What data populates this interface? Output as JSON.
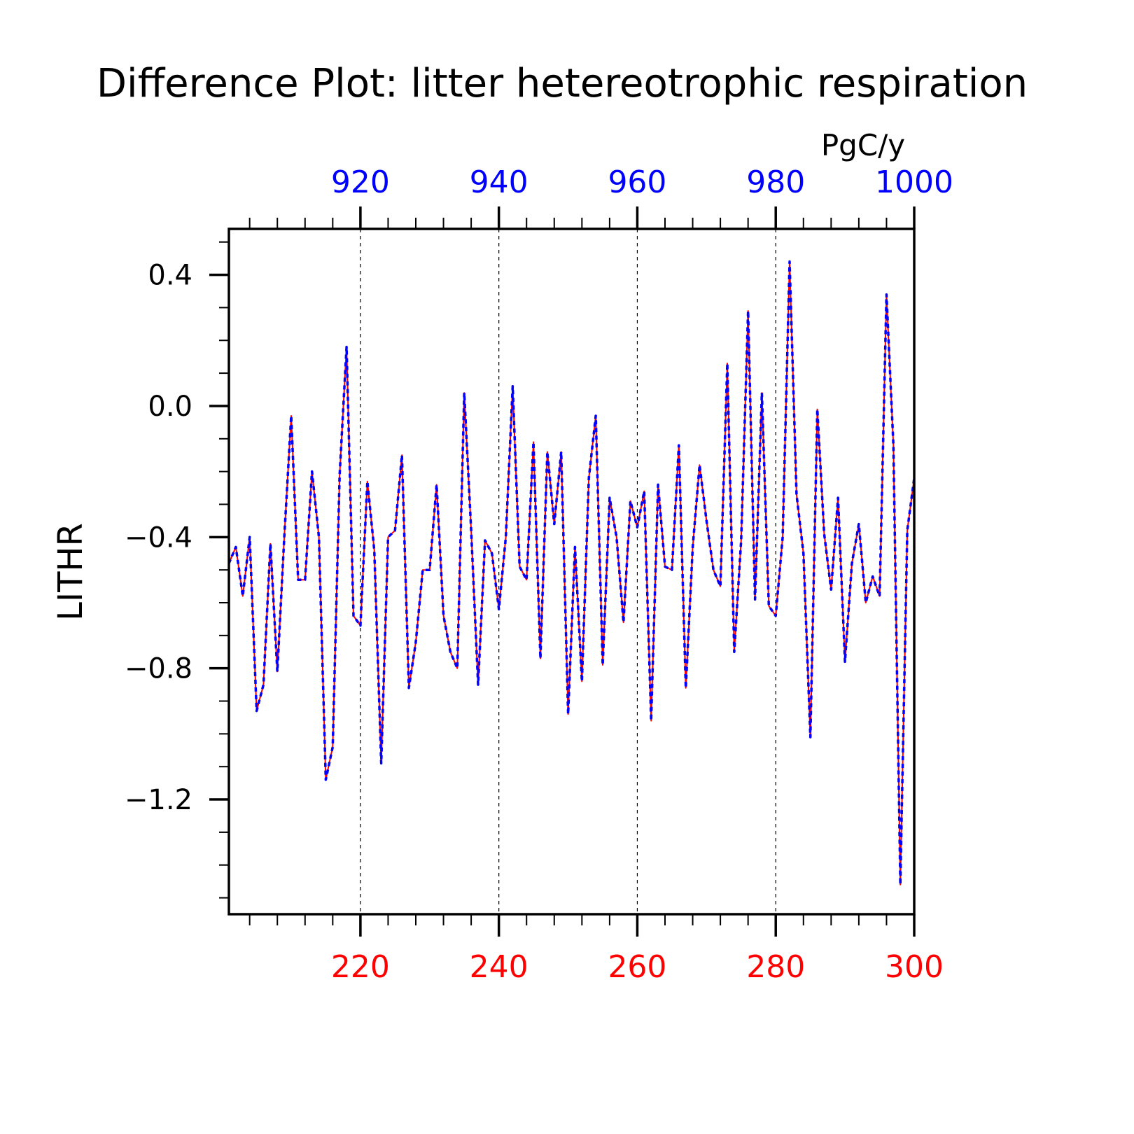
{
  "chart_data": {
    "type": "line",
    "title": "Difference Plot: litter hetereotrophic respiration",
    "units": "PgC/y",
    "ylabel": "LITHR",
    "xlabel": "",
    "ylim": [
      -1.55,
      0.54
    ],
    "grid": "vertical dashed lines at labeled x ticks",
    "bottom_axis": {
      "color": "#ff0000",
      "range": [
        201,
        300
      ],
      "tick_labels": [
        "220",
        "240",
        "260",
        "280",
        "300"
      ],
      "tick_values": [
        220,
        240,
        260,
        280,
        300
      ]
    },
    "top_axis": {
      "color": "#0000ff",
      "range": [
        901,
        1000
      ],
      "tick_labels": [
        "920",
        "940",
        "960",
        "980",
        "1000"
      ],
      "tick_values": [
        920,
        940,
        960,
        980,
        1000
      ]
    },
    "y_tick_labels": [
      "0.4",
      "0.0",
      "−0.4",
      "−0.8",
      "−1.2"
    ],
    "y_tick_values": [
      0.4,
      0.0,
      -0.4,
      -0.8,
      -1.2
    ],
    "series": [
      {
        "axis": "bottom",
        "color": "#ff0000",
        "style": "solid",
        "x_start": 201,
        "values": [
          -0.48,
          -0.43,
          -0.58,
          -0.4,
          -0.93,
          -0.85,
          -0.42,
          -0.81,
          -0.4,
          -0.03,
          -0.53,
          -0.53,
          -0.2,
          -0.4,
          -1.14,
          -1.04,
          -0.21,
          0.18,
          -0.64,
          -0.67,
          -0.23,
          -0.44,
          -1.09,
          -0.4,
          -0.38,
          -0.15,
          -0.86,
          -0.72,
          -0.5,
          -0.5,
          -0.24,
          -0.64,
          -0.75,
          -0.8,
          0.04,
          -0.38,
          -0.85,
          -0.41,
          -0.45,
          -0.62,
          -0.4,
          0.06,
          -0.49,
          -0.53,
          -0.11,
          -0.77,
          -0.14,
          -0.36,
          -0.14,
          -0.94,
          -0.43,
          -0.84,
          -0.22,
          -0.03,
          -0.79,
          -0.28,
          -0.4,
          -0.66,
          -0.29,
          -0.37,
          -0.26,
          -0.96,
          -0.24,
          -0.49,
          -0.5,
          -0.12,
          -0.86,
          -0.43,
          -0.18,
          -0.35,
          -0.5,
          -0.55,
          0.13,
          -0.75,
          -0.41,
          0.29,
          -0.59,
          0.04,
          -0.61,
          -0.64,
          -0.4,
          0.44,
          -0.27,
          -0.45,
          -1.01,
          -0.01,
          -0.39,
          -0.56,
          -0.28,
          -0.78,
          -0.48,
          -0.36,
          -0.6,
          -0.52,
          -0.58,
          0.34,
          -0.12,
          -1.46,
          -0.38,
          -0.22
        ]
      },
      {
        "axis": "top",
        "color": "#0000ff",
        "style": "dashed",
        "x_start": 901,
        "values": [
          -0.48,
          -0.43,
          -0.58,
          -0.4,
          -0.93,
          -0.85,
          -0.42,
          -0.81,
          -0.4,
          -0.03,
          -0.53,
          -0.53,
          -0.2,
          -0.4,
          -1.14,
          -1.04,
          -0.21,
          0.18,
          -0.64,
          -0.67,
          -0.23,
          -0.44,
          -1.09,
          -0.4,
          -0.38,
          -0.15,
          -0.86,
          -0.72,
          -0.5,
          -0.5,
          -0.24,
          -0.64,
          -0.75,
          -0.8,
          0.04,
          -0.38,
          -0.85,
          -0.41,
          -0.45,
          -0.62,
          -0.4,
          0.06,
          -0.49,
          -0.53,
          -0.11,
          -0.77,
          -0.14,
          -0.36,
          -0.14,
          -0.94,
          -0.43,
          -0.84,
          -0.22,
          -0.03,
          -0.79,
          -0.28,
          -0.4,
          -0.66,
          -0.29,
          -0.37,
          -0.26,
          -0.96,
          -0.24,
          -0.49,
          -0.5,
          -0.12,
          -0.86,
          -0.43,
          -0.18,
          -0.35,
          -0.5,
          -0.55,
          0.13,
          -0.75,
          -0.41,
          0.29,
          -0.59,
          0.04,
          -0.61,
          -0.64,
          -0.4,
          0.44,
          -0.27,
          -0.45,
          -1.01,
          -0.01,
          -0.39,
          -0.56,
          -0.28,
          -0.78,
          -0.48,
          -0.36,
          -0.6,
          -0.52,
          -0.58,
          0.34,
          -0.12,
          -1.46,
          -0.38,
          -0.22
        ]
      }
    ]
  }
}
